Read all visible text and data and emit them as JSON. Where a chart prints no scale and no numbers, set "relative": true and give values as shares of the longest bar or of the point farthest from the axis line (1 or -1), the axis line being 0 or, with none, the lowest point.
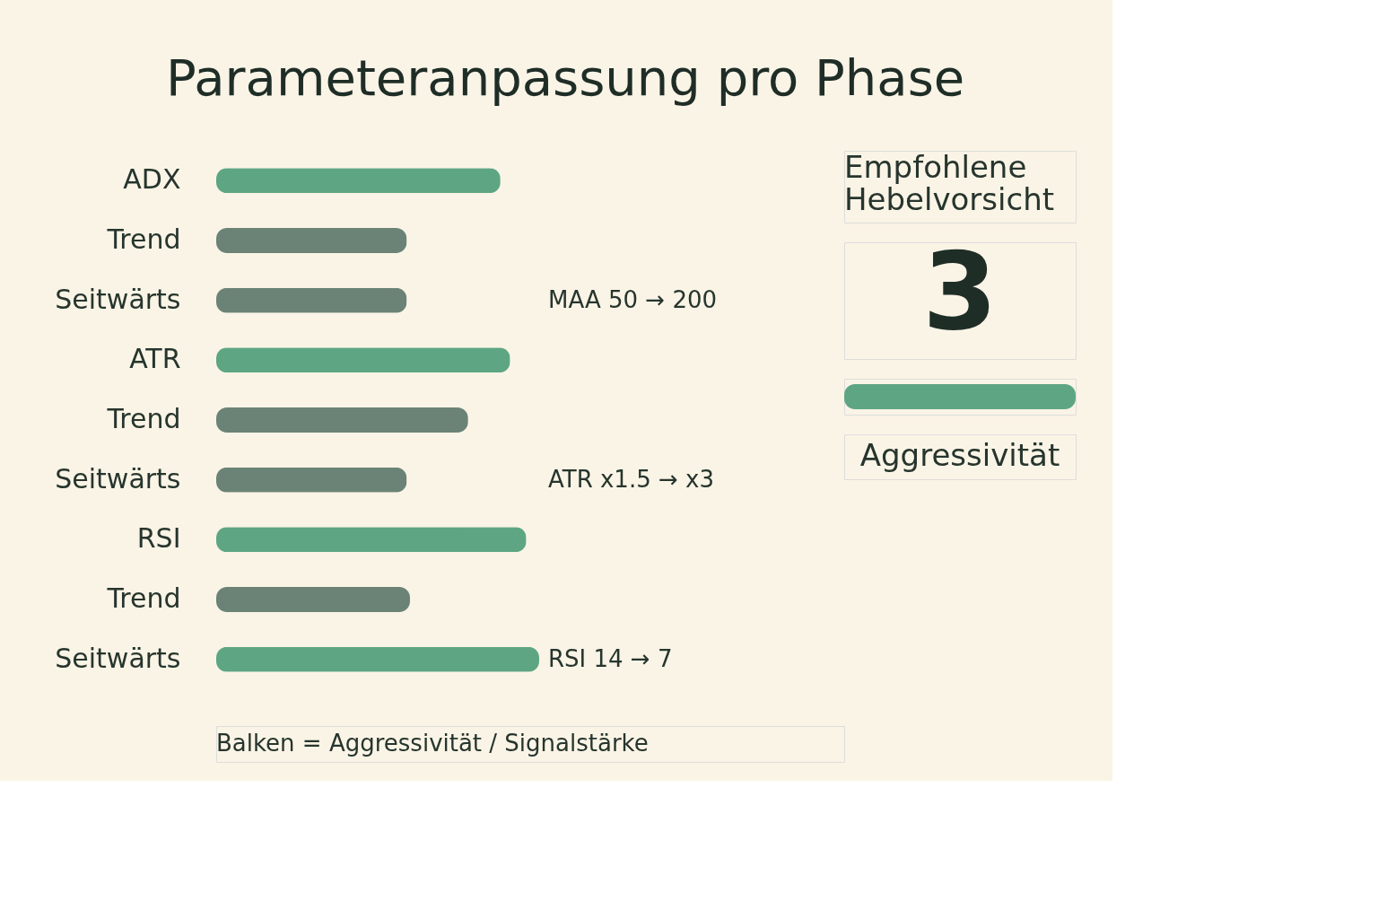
{
  "chart_data": [
    {
      "type": "bar",
      "orientation": "horizontal",
      "relative": true,
      "title": "Parameteranpassung pro Phase",
      "categories": [
        "ADX",
        "Trend",
        "Seitwärts",
        "ATR",
        "Trend",
        "Seitwärts",
        "RSI",
        "Trend",
        "Seitwärts"
      ],
      "values": [
        0.88,
        0.59,
        0.59,
        0.91,
        0.78,
        0.59,
        0.96,
        0.6,
        1.0
      ],
      "colors": [
        "#5ea683",
        "#6b8376",
        "#6b8376",
        "#5ea683",
        "#6b8376",
        "#6b8376",
        "#5ea683",
        "#6b8376",
        "#5ea683"
      ],
      "annotations": [
        "MAA 50 → 200",
        "ATR x1.5 → x3",
        "RSI 14 → 7",
        "Balken = Aggressivität / Signalstärke"
      ],
      "grid": false
    },
    {
      "type": "bar",
      "orientation": "horizontal",
      "relative": true,
      "title": "Empfohlene Hebelvorsicht",
      "categories": [
        null
      ],
      "values": [
        1
      ],
      "colors": [
        "#5ea683"
      ],
      "annotations": [
        "3",
        "Aggressivität"
      ]
    }
  ]
}
